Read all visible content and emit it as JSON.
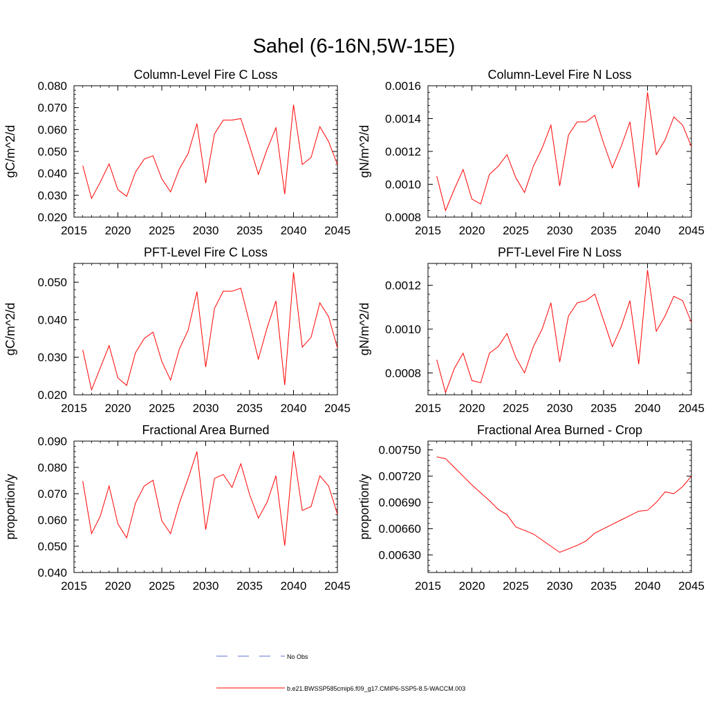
{
  "figure": {
    "title": "Sahel (6-16N,5W-15E)"
  },
  "legend": {
    "entries": [
      {
        "label": "No Obs",
        "color": "#5b6fd6",
        "style": "dashed"
      },
      {
        "label": "b.e21.BWSSP585cmip6.f09_g17.CMIP6-SSP5-8.5-WACCM.003",
        "color": "#ff0000",
        "style": "solid"
      }
    ]
  },
  "chart_data": [
    {
      "type": "line",
      "title": "Column-Level Fire C Loss",
      "ylabel": "gC/m^2/d",
      "xlim": [
        2015,
        2045
      ],
      "ylim": [
        0.02,
        0.08
      ],
      "xticks": [
        "2015",
        "2020",
        "2025",
        "2030",
        "2035",
        "2040",
        "2045"
      ],
      "yticks": [
        "0.020",
        "0.030",
        "0.040",
        "0.050",
        "0.060",
        "0.070",
        "0.080"
      ],
      "series": [
        {
          "color": "#ff0000",
          "x": [
            2016,
            2017,
            2018,
            2019,
            2020,
            2021,
            2022,
            2023,
            2024,
            2025,
            2026,
            2027,
            2028,
            2029,
            2030,
            2031,
            2032,
            2033,
            2034,
            2035,
            2036,
            2037,
            2038,
            2039,
            2040,
            2041,
            2042,
            2043,
            2044,
            2045
          ],
          "values": [
            0.0435,
            0.0285,
            0.036,
            0.0443,
            0.0325,
            0.0295,
            0.0405,
            0.0465,
            0.048,
            0.0375,
            0.0315,
            0.042,
            0.049,
            0.0627,
            0.0355,
            0.058,
            0.0643,
            0.0643,
            0.065,
            0.0525,
            0.0395,
            0.051,
            0.0608,
            0.0305,
            0.0713,
            0.044,
            0.0472,
            0.0613,
            0.0545,
            0.044
          ]
        }
      ]
    },
    {
      "type": "line",
      "title": "Column-Level Fire N Loss",
      "ylabel": "gN/m^2/d",
      "xlim": [
        2015,
        2045
      ],
      "ylim": [
        0.0008,
        0.0016
      ],
      "xticks": [
        "2015",
        "2020",
        "2025",
        "2030",
        "2035",
        "2040",
        "2045"
      ],
      "yticks": [
        "0.0008",
        "0.0010",
        "0.0012",
        "0.0014",
        "0.0016"
      ],
      "series": [
        {
          "color": "#ff0000",
          "x": [
            2016,
            2017,
            2018,
            2019,
            2020,
            2021,
            2022,
            2023,
            2024,
            2025,
            2026,
            2027,
            2028,
            2029,
            2030,
            2031,
            2032,
            2033,
            2034,
            2035,
            2036,
            2037,
            2038,
            2039,
            2040,
            2041,
            2042,
            2043,
            2044,
            2045
          ],
          "values": [
            0.00105,
            0.00084,
            0.00097,
            0.00109,
            0.00091,
            0.00088,
            0.00106,
            0.00111,
            0.00118,
            0.00104,
            0.00095,
            0.00111,
            0.00122,
            0.00136,
            0.00099,
            0.0013,
            0.00138,
            0.00138,
            0.00142,
            0.00125,
            0.0011,
            0.00123,
            0.00138,
            0.00098,
            0.00156,
            0.00118,
            0.00127,
            0.00141,
            0.00136,
            0.00123
          ]
        }
      ]
    },
    {
      "type": "line",
      "title": "PFT-Level Fire C Loss",
      "ylabel": "gC/m^2/d",
      "xlim": [
        2015,
        2045
      ],
      "ylim": [
        0.02,
        0.055
      ],
      "xticks": [
        "2015",
        "2020",
        "2025",
        "2030",
        "2035",
        "2040",
        "2045"
      ],
      "yticks": [
        "0.020",
        "0.030",
        "0.040",
        "0.050"
      ],
      "series": [
        {
          "color": "#ff0000",
          "x": [
            2016,
            2017,
            2018,
            2019,
            2020,
            2021,
            2022,
            2023,
            2024,
            2025,
            2026,
            2027,
            2028,
            2029,
            2030,
            2031,
            2032,
            2033,
            2034,
            2035,
            2036,
            2037,
            2038,
            2039,
            2040,
            2041,
            2042,
            2043,
            2044,
            2045
          ],
          "values": [
            0.032,
            0.0213,
            0.0272,
            0.0331,
            0.0245,
            0.0225,
            0.0312,
            0.035,
            0.0367,
            0.0289,
            0.0239,
            0.0322,
            0.0372,
            0.0475,
            0.0274,
            0.043,
            0.0476,
            0.0476,
            0.0484,
            0.0391,
            0.0295,
            0.0379,
            0.045,
            0.0226,
            0.0526,
            0.0327,
            0.0353,
            0.0445,
            0.0408,
            0.0325
          ]
        }
      ]
    },
    {
      "type": "line",
      "title": "PFT-Level Fire N Loss",
      "ylabel": "gN/m^2/d",
      "xlim": [
        2015,
        2045
      ],
      "ylim": [
        0.0007,
        0.0013
      ],
      "xticks": [
        "2015",
        "2020",
        "2025",
        "2030",
        "2035",
        "2040",
        "2045"
      ],
      "yticks": [
        "0.0008",
        "0.0010",
        "0.0012"
      ],
      "series": [
        {
          "color": "#ff0000",
          "x": [
            2016,
            2017,
            2018,
            2019,
            2020,
            2021,
            2022,
            2023,
            2024,
            2025,
            2026,
            2027,
            2028,
            2029,
            2030,
            2031,
            2032,
            2033,
            2034,
            2035,
            2036,
            2037,
            2038,
            2039,
            2040,
            2041,
            2042,
            2043,
            2044,
            2045
          ],
          "values": [
            0.00086,
            0.00071,
            0.00082,
            0.00089,
            0.000765,
            0.000755,
            0.00089,
            0.00092,
            0.00098,
            0.00087,
            0.0008,
            0.00092,
            0.001,
            0.00112,
            0.00085,
            0.00106,
            0.00112,
            0.00113,
            0.00116,
            0.00104,
            0.00092,
            0.00101,
            0.00113,
            0.00084,
            0.00127,
            0.00099,
            0.00106,
            0.00115,
            0.00113,
            0.00103
          ]
        }
      ]
    },
    {
      "type": "line",
      "title": "Fractional Area Burned",
      "ylabel": "proportion/y",
      "xlim": [
        2015,
        2045
      ],
      "ylim": [
        0.04,
        0.09
      ],
      "xticks": [
        "2015",
        "2020",
        "2025",
        "2030",
        "2035",
        "2040",
        "2045"
      ],
      "yticks": [
        "0.040",
        "0.050",
        "0.060",
        "0.070",
        "0.080",
        "0.090"
      ],
      "series": [
        {
          "color": "#ff0000",
          "x": [
            2016,
            2017,
            2018,
            2019,
            2020,
            2021,
            2022,
            2023,
            2024,
            2025,
            2026,
            2027,
            2028,
            2029,
            2030,
            2031,
            2032,
            2033,
            2034,
            2035,
            2036,
            2037,
            2038,
            2039,
            2040,
            2041,
            2042,
            2043,
            2044,
            2045
          ],
          "values": [
            0.0748,
            0.0548,
            0.0615,
            0.0729,
            0.0585,
            0.0532,
            0.0664,
            0.0729,
            0.0751,
            0.0597,
            0.0548,
            0.0664,
            0.0758,
            0.086,
            0.0563,
            0.0758,
            0.0773,
            0.0724,
            0.0814,
            0.0697,
            0.0607,
            0.0668,
            0.0768,
            0.0502,
            0.0862,
            0.0636,
            0.0651,
            0.0768,
            0.0729,
            0.0622
          ]
        }
      ]
    },
    {
      "type": "line",
      "title": "Fractional Area Burned - Crop",
      "ylabel": "proportion/y",
      "xlim": [
        2015,
        2045
      ],
      "ylim": [
        0.0061,
        0.0076
      ],
      "xticks": [
        "2015",
        "2020",
        "2025",
        "2030",
        "2035",
        "2040",
        "2045"
      ],
      "yticks": [
        "0.00630",
        "0.00660",
        "0.00690",
        "0.00720",
        "0.00750"
      ],
      "series": [
        {
          "color": "#ff0000",
          "x": [
            2016,
            2017,
            2018,
            2019,
            2020,
            2021,
            2022,
            2023,
            2024,
            2025,
            2026,
            2027,
            2028,
            2029,
            2030,
            2031,
            2032,
            2033,
            2034,
            2035,
            2036,
            2037,
            2038,
            2039,
            2040,
            2041,
            2042,
            2043,
            2044,
            2045
          ],
          "values": [
            0.00742,
            0.0074,
            0.0073,
            0.0072,
            0.0071,
            0.00701,
            0.00692,
            0.00682,
            0.00676,
            0.00662,
            0.00658,
            0.00654,
            0.00647,
            0.0064,
            0.00633,
            0.00637,
            0.00641,
            0.00646,
            0.00655,
            0.0066,
            0.00665,
            0.0067,
            0.00675,
            0.0068,
            0.00681,
            0.0069,
            0.00702,
            0.007,
            0.00708,
            0.0072
          ]
        }
      ]
    }
  ]
}
